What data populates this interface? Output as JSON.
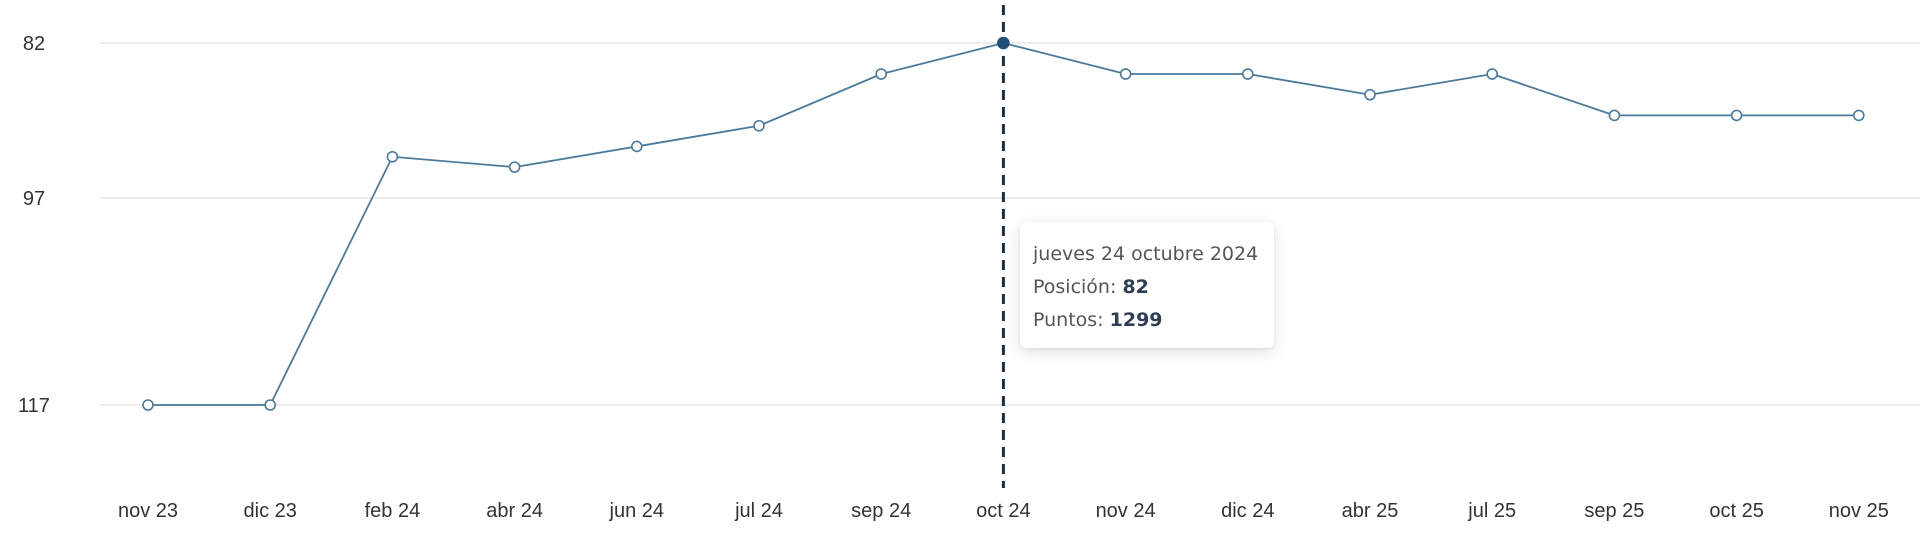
{
  "chart_data": {
    "type": "line",
    "title": "",
    "xlabel": "",
    "ylabel": "",
    "y_inverted": true,
    "yticks": [
      82,
      97,
      117
    ],
    "ylim": [
      79,
      122
    ],
    "grid": true,
    "categories": [
      "nov 23",
      "dic 23",
      "feb 24",
      "abr 24",
      "jun 24",
      "jul 24",
      "sep 24",
      "oct 24",
      "nov 24",
      "dic 24",
      "abr 25",
      "jul 25",
      "sep 25",
      "oct 25",
      "nov 25"
    ],
    "series": [
      {
        "values": [
          117,
          117,
          93,
          94,
          92,
          90,
          85,
          82,
          85,
          85,
          87,
          85,
          89,
          89,
          89
        ]
      }
    ],
    "highlight_index": 7,
    "line_color": "#4a7a9c",
    "highlight_color": "#1f4e79"
  },
  "tooltip": {
    "date": "jueves 24 octubre 2024",
    "position_label": "Posición:",
    "position_value": "82",
    "points_label": "Puntos:",
    "points_value": "1299"
  }
}
